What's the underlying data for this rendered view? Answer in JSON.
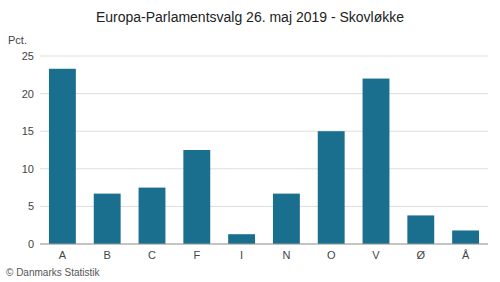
{
  "chart_data": {
    "type": "bar",
    "title": "Europa-Parlamentsvalg 26. maj 2019 - Skovløkke",
    "categories": [
      "A",
      "B",
      "C",
      "F",
      "I",
      "N",
      "O",
      "V",
      "Ø",
      "Å"
    ],
    "values": [
      23.3,
      6.7,
      7.5,
      12.5,
      1.3,
      6.7,
      15.0,
      22.0,
      3.8,
      1.8
    ],
    "color": "#1a6e8e",
    "ylabel": "Pct.",
    "ylim": [
      0,
      25
    ],
    "yticks": [
      0,
      5,
      10,
      15,
      20,
      25
    ],
    "grid": true,
    "footnote": "© Danmarks Statistik"
  }
}
